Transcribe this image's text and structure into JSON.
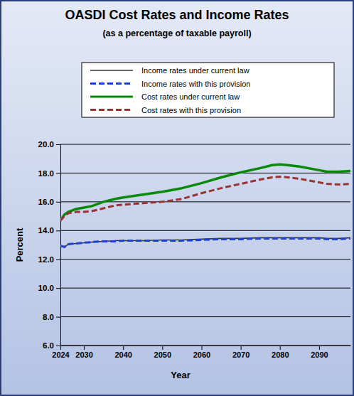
{
  "chart_data": {
    "type": "line",
    "title": "OASDI Cost Rates and Income Rates",
    "subtitle": "(as a percentage of taxable payroll)",
    "xlabel": "Year",
    "ylabel": "Percent",
    "x": [
      2024,
      2025,
      2026,
      2028,
      2030,
      2032,
      2035,
      2038,
      2040,
      2045,
      2050,
      2055,
      2060,
      2065,
      2070,
      2075,
      2078,
      2080,
      2082,
      2085,
      2090,
      2092,
      2095,
      2098
    ],
    "series": [
      {
        "name": "Income rates under current law",
        "color": "#333333",
        "line_style": "solid",
        "values": [
          12.95,
          12.85,
          13.05,
          13.1,
          13.15,
          13.2,
          13.25,
          13.3,
          13.3,
          13.3,
          13.35,
          13.35,
          13.4,
          13.45,
          13.45,
          13.5,
          13.5,
          13.5,
          13.5,
          13.5,
          13.5,
          13.45,
          13.45,
          13.5
        ]
      },
      {
        "name": "Income rates with this provision",
        "color": "#1f3fd6",
        "line_style": "dashed",
        "values": [
          12.95,
          12.85,
          13.05,
          13.1,
          13.15,
          13.2,
          13.25,
          13.25,
          13.3,
          13.3,
          13.3,
          13.3,
          13.35,
          13.4,
          13.4,
          13.45,
          13.45,
          13.45,
          13.45,
          13.45,
          13.45,
          13.4,
          13.4,
          13.45
        ]
      },
      {
        "name": "Cost rates under current law",
        "color": "#0a8a0a",
        "line_style": "solid",
        "values": [
          14.7,
          15.1,
          15.3,
          15.5,
          15.6,
          15.7,
          16.0,
          16.2,
          16.3,
          16.5,
          16.7,
          16.95,
          17.3,
          17.7,
          18.05,
          18.35,
          18.55,
          18.6,
          18.55,
          18.45,
          18.2,
          18.1,
          18.1,
          18.15
        ]
      },
      {
        "name": "Cost rates with this provision",
        "color": "#993333",
        "line_style": "dashed",
        "values": [
          14.7,
          15.0,
          15.2,
          15.3,
          15.3,
          15.35,
          15.55,
          15.75,
          15.8,
          15.9,
          16.0,
          16.2,
          16.6,
          16.95,
          17.25,
          17.55,
          17.7,
          17.75,
          17.7,
          17.6,
          17.35,
          17.25,
          17.2,
          17.25
        ]
      }
    ],
    "xlim": [
      2024,
      2098
    ],
    "xticks": [
      2024,
      2030,
      2040,
      2050,
      2060,
      2070,
      2080,
      2090
    ],
    "ylim": [
      6,
      20
    ],
    "yticks": [
      {
        "value": 6,
        "label": "6.0"
      },
      {
        "value": 8,
        "label": "8.0"
      },
      {
        "value": 10,
        "label": "10.0"
      },
      {
        "value": 12,
        "label": "12.0"
      },
      {
        "value": 14,
        "label": "14.0"
      },
      {
        "value": 16,
        "label": "16.0"
      },
      {
        "value": 18,
        "label": "18.0"
      },
      {
        "value": 20,
        "label": "20.0"
      }
    ],
    "grid": true,
    "legend": "top"
  }
}
